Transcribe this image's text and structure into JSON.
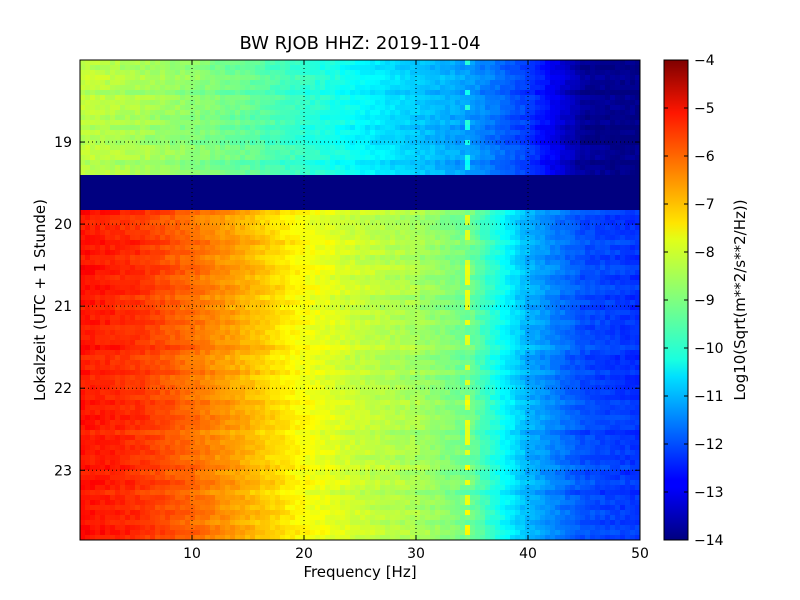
{
  "chart_data": {
    "type": "heatmap",
    "title": "BW RJOB HHZ: 2019-11-04",
    "xlabel": "Frequency [Hz]",
    "ylabel": "Lokalzeit (UTC + 1 Stunde)",
    "colorbar_label": "Log10(Sqrt(m**2/s**2/Hz))",
    "xlim": [
      0,
      50
    ],
    "ylim": [
      23.85,
      18.0
    ],
    "y_inverted": true,
    "x_ticks": [
      10,
      20,
      30,
      40,
      50
    ],
    "x_tick_labels": [
      "10",
      "20",
      "30",
      "40",
      "50"
    ],
    "y_ticks": [
      19,
      20,
      21,
      22,
      23
    ],
    "y_tick_labels": [
      "19",
      "20",
      "21",
      "22",
      "23"
    ],
    "colorbar_range": [
      -14,
      -4
    ],
    "colorbar_ticks": [
      -4,
      -5,
      -6,
      -7,
      -8,
      -9,
      -10,
      -11,
      -12,
      -13,
      -14
    ],
    "colorbar_tick_labels": [
      "−4",
      "−5",
      "−6",
      "−7",
      "−8",
      "−9",
      "−10",
      "−11",
      "−12",
      "−13",
      "−14"
    ],
    "colormap": "jet",
    "grid": true,
    "gap_interval": {
      "start_hour": 19.43,
      "end_hour": 19.83,
      "value": -14
    },
    "spectral_profile_before_gap": {
      "frequency_hz": [
        0,
        5,
        10,
        15,
        20,
        25,
        30,
        35,
        40,
        45,
        50
      ],
      "value": [
        -8.4,
        -8.6,
        -8.9,
        -9.3,
        -9.8,
        -10.3,
        -10.8,
        -11.3,
        -12.2,
        -13.8,
        -14
      ]
    },
    "spectral_profile_after_gap": {
      "frequency_hz": [
        0,
        5,
        10,
        15,
        20,
        25,
        30,
        35,
        40,
        45,
        50
      ],
      "value": [
        -5.4,
        -5.7,
        -6.3,
        -7.0,
        -7.8,
        -8.3,
        -8.6,
        -9.2,
        -11.0,
        -12.0,
        -12.3
      ]
    },
    "narrowband_line_hz": 34.5
  }
}
